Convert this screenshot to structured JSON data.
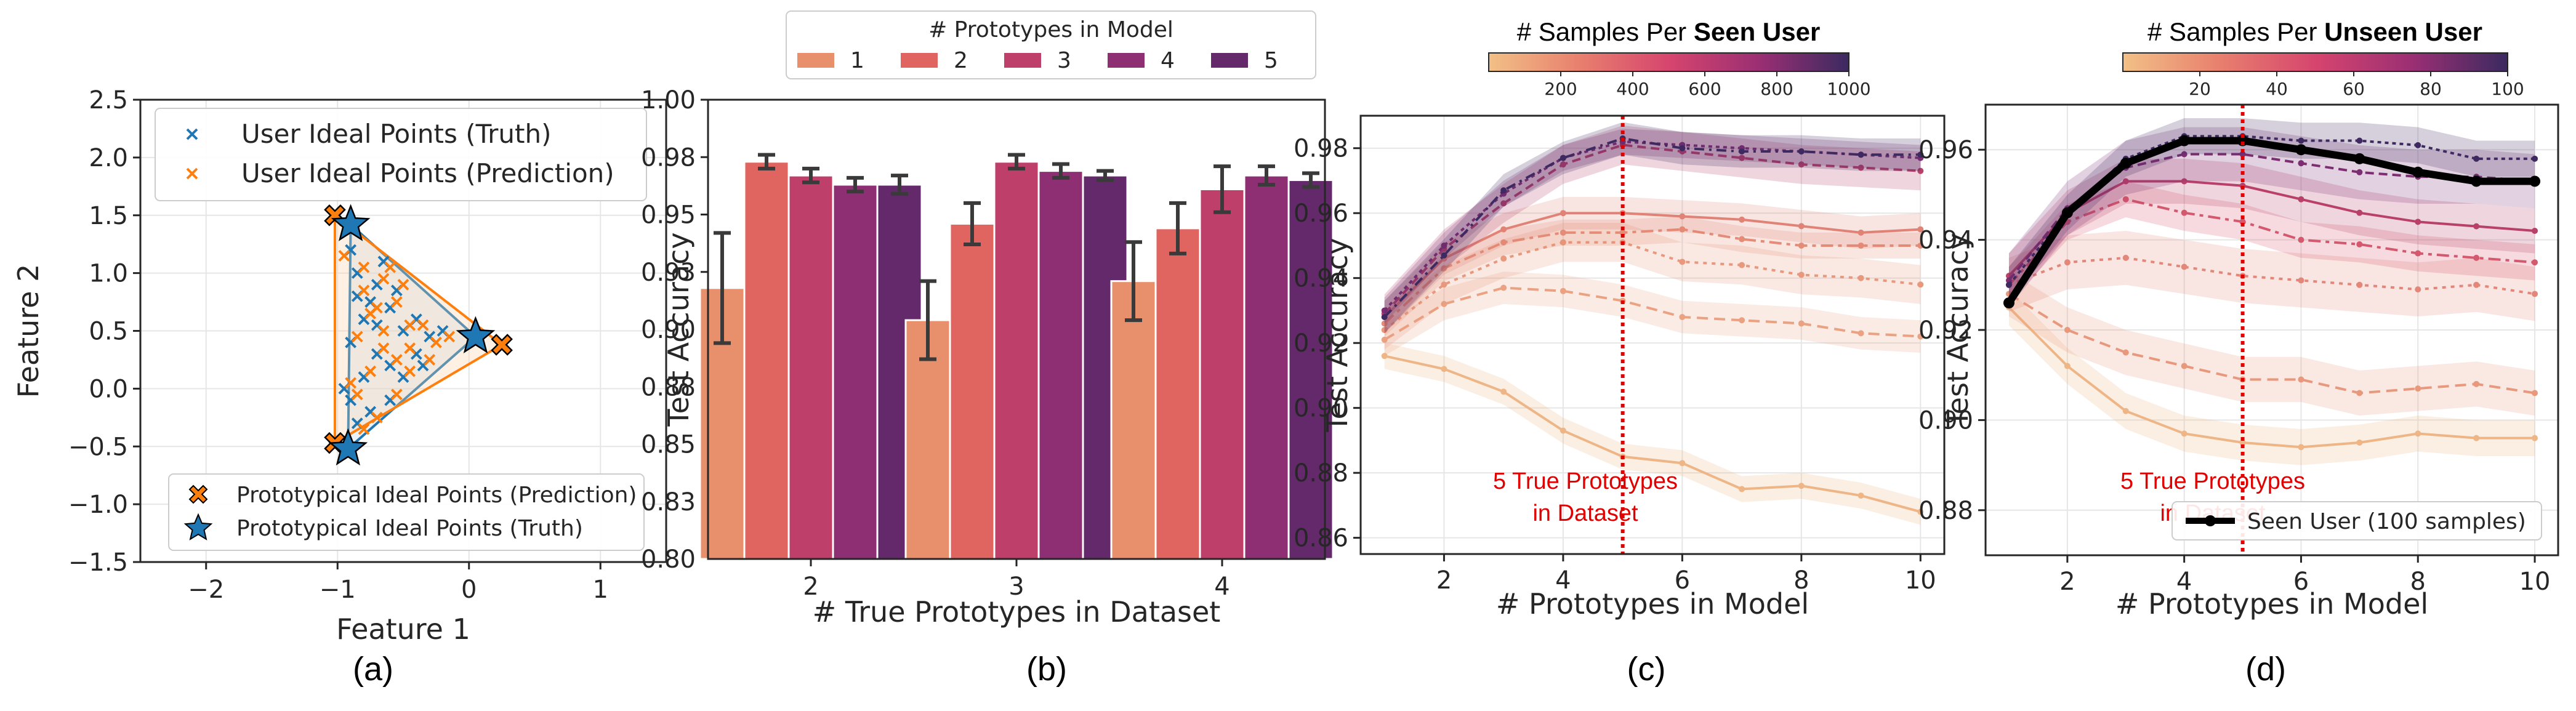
{
  "chart_data": [
    {
      "id": "a",
      "type": "scatter",
      "caption": "(a)",
      "xlabel": "Feature 1",
      "ylabel": "Feature 2",
      "xlim": [
        -2.5,
        1.5
      ],
      "ylim": [
        -1.5,
        2.5
      ],
      "xticks": [
        -2,
        -1,
        0,
        1
      ],
      "xtick_labels": [
        "−2",
        "−1",
        "0",
        "1"
      ],
      "yticks": [
        -1.5,
        -1.0,
        -0.5,
        0.0,
        0.5,
        1.0,
        1.5,
        2.0,
        2.5
      ],
      "ytick_labels": [
        "−1.5",
        "−1.0",
        "−0.5",
        "0.0",
        "0.5",
        "1.0",
        "1.5",
        "2.0",
        "2.5"
      ],
      "legend_top": [
        "User Ideal Points (Truth)",
        "User Ideal Points (Prediction)"
      ],
      "legend_bottom": [
        "Prototypical Ideal Points (Prediction)",
        "Prototypical Ideal Points (Truth)"
      ],
      "colors": {
        "truth": "#1f77b4",
        "prediction": "#ff7f0e"
      },
      "prototypes_truth": [
        [
          -0.9,
          1.42
        ],
        [
          0.05,
          0.45
        ],
        [
          -0.92,
          -0.52
        ]
      ],
      "prototypes_prediction": [
        [
          -1.02,
          1.5
        ],
        [
          0.25,
          0.38
        ],
        [
          -1.02,
          -0.47
        ]
      ],
      "user_points_truth": [
        [
          -0.9,
          1.2
        ],
        [
          -0.85,
          1.0
        ],
        [
          -0.7,
          0.9
        ],
        [
          -0.6,
          0.7
        ],
        [
          -0.8,
          0.6
        ],
        [
          -0.5,
          0.5
        ],
        [
          -0.4,
          0.6
        ],
        [
          -0.9,
          0.4
        ],
        [
          -0.7,
          0.3
        ],
        [
          -0.6,
          0.2
        ],
        [
          -0.8,
          0.1
        ],
        [
          -0.9,
          -0.1
        ],
        [
          -0.75,
          -0.2
        ],
        [
          -0.6,
          -0.1
        ],
        [
          -0.4,
          0.3
        ],
        [
          -0.3,
          0.45
        ],
        [
          -0.2,
          0.5
        ],
        [
          -0.85,
          0.8
        ],
        [
          -0.65,
          1.1
        ],
        [
          -0.55,
          0.85
        ],
        [
          -0.95,
          0.0
        ],
        [
          -0.85,
          -0.3
        ],
        [
          -0.7,
          0.55
        ],
        [
          -0.5,
          0.1
        ],
        [
          -0.35,
          0.2
        ],
        [
          -0.75,
          0.75
        ]
      ],
      "user_points_prediction": [
        [
          -0.95,
          1.15
        ],
        [
          -0.8,
          1.05
        ],
        [
          -0.65,
          0.95
        ],
        [
          -0.55,
          0.75
        ],
        [
          -0.75,
          0.65
        ],
        [
          -0.45,
          0.55
        ],
        [
          -0.35,
          0.55
        ],
        [
          -0.85,
          0.45
        ],
        [
          -0.65,
          0.35
        ],
        [
          -0.55,
          0.25
        ],
        [
          -0.75,
          0.15
        ],
        [
          -0.85,
          -0.05
        ],
        [
          -0.7,
          -0.25
        ],
        [
          -0.55,
          -0.05
        ],
        [
          -0.45,
          0.35
        ],
        [
          -0.25,
          0.4
        ],
        [
          -0.15,
          0.45
        ],
        [
          -0.8,
          0.85
        ],
        [
          -0.6,
          1.05
        ],
        [
          -0.5,
          0.9
        ],
        [
          -0.9,
          0.05
        ],
        [
          -0.8,
          -0.35
        ],
        [
          -0.65,
          0.5
        ],
        [
          -0.45,
          0.15
        ],
        [
          -0.3,
          0.25
        ],
        [
          -0.7,
          0.7
        ]
      ]
    },
    {
      "id": "b",
      "type": "bar",
      "caption": "(b)",
      "xlabel": "# True Prototypes in Dataset",
      "ylabel": "Test Accuracy",
      "ylim": [
        0.8,
        1.0
      ],
      "yticks": [
        0.8,
        0.825,
        0.85,
        0.875,
        0.9,
        0.925,
        0.95,
        0.975,
        1.0
      ],
      "ytick_labels": [
        "0.80",
        "0.83",
        "0.85",
        "0.88",
        "0.90",
        "0.93",
        "0.95",
        "0.98",
        "1.00"
      ],
      "categories": [
        "2",
        "3",
        "4"
      ],
      "legend_title": "# Prototypes in Model",
      "series": [
        {
          "name": "1",
          "color": "#e8906c",
          "values": [
            0.918,
            0.904,
            0.921
          ],
          "err": [
            0.024,
            0.017,
            0.017
          ]
        },
        {
          "name": "2",
          "color": "#e0645f",
          "values": [
            0.973,
            0.946,
            0.944
          ],
          "err": [
            0.003,
            0.009,
            0.011
          ]
        },
        {
          "name": "3",
          "color": "#bd3f6a",
          "values": [
            0.967,
            0.973,
            0.961
          ],
          "err": [
            0.003,
            0.003,
            0.01
          ]
        },
        {
          "name": "4",
          "color": "#8e2f73",
          "values": [
            0.963,
            0.969,
            0.967
          ],
          "err": [
            0.003,
            0.003,
            0.004
          ]
        },
        {
          "name": "5",
          "color": "#64296b",
          "values": [
            0.963,
            0.967,
            0.965
          ],
          "err": [
            0.004,
            0.002,
            0.003
          ]
        }
      ]
    },
    {
      "id": "c",
      "type": "line",
      "caption": "(c)",
      "xlabel": "# Prototypes in Model",
      "ylabel": "Test Accuracy",
      "xlim": [
        0.6,
        10.4
      ],
      "ylim": [
        0.855,
        0.99
      ],
      "xticks": [
        2,
        4,
        6,
        8,
        10
      ],
      "yticks": [
        0.86,
        0.88,
        0.9,
        0.92,
        0.94,
        0.96,
        0.98
      ],
      "ytick_labels": [
        "0.86",
        "0.88",
        "0.90",
        "0.92",
        "0.94",
        "0.96",
        "0.98"
      ],
      "x": [
        1,
        2,
        3,
        4,
        5,
        6,
        7,
        8,
        9,
        10
      ],
      "colorbar_title_prefix": "# Samples Per ",
      "colorbar_title_bold": "Seen User",
      "colorbar_range": [
        0,
        1000
      ],
      "colorbar_ticks": [
        "200",
        "400",
        "600",
        "800",
        "1000"
      ],
      "vline_x": 5,
      "annotation": [
        "5 True Prototypes",
        "in Dataset"
      ],
      "series": [
        {
          "name": "50",
          "color": "#eeb586",
          "values": [
            0.916,
            0.912,
            0.905,
            0.893,
            0.885,
            0.883,
            0.875,
            0.876,
            0.873,
            0.868
          ]
        },
        {
          "name": "150",
          "color": "#eaa282",
          "values": [
            0.921,
            0.932,
            0.937,
            0.936,
            0.933,
            0.928,
            0.927,
            0.926,
            0.923,
            0.922
          ]
        },
        {
          "name": "250",
          "color": "#e8987c",
          "values": [
            0.924,
            0.938,
            0.946,
            0.951,
            0.951,
            0.945,
            0.944,
            0.941,
            0.94,
            0.938
          ]
        },
        {
          "name": "350",
          "color": "#e48c78",
          "values": [
            0.926,
            0.943,
            0.951,
            0.954,
            0.954,
            0.955,
            0.952,
            0.95,
            0.95,
            0.95
          ]
        },
        {
          "name": "450",
          "color": "#e08376",
          "values": [
            0.928,
            0.946,
            0.955,
            0.96,
            0.96,
            0.959,
            0.958,
            0.956,
            0.954,
            0.955
          ]
        },
        {
          "name": "700",
          "color": "#b84069",
          "values": [
            0.929,
            0.949,
            0.963,
            0.975,
            0.981,
            0.979,
            0.977,
            0.975,
            0.974,
            0.973
          ]
        },
        {
          "name": "850",
          "color": "#7d2e72",
          "values": [
            0.93,
            0.95,
            0.966,
            0.977,
            0.982,
            0.981,
            0.98,
            0.979,
            0.978,
            0.977
          ]
        },
        {
          "name": "1000",
          "color": "#3e2a61",
          "values": [
            0.928,
            0.947,
            0.967,
            0.977,
            0.983,
            0.98,
            0.979,
            0.979,
            0.978,
            0.978
          ]
        }
      ]
    },
    {
      "id": "d",
      "type": "line",
      "caption": "(d)",
      "xlabel": "# Prototypes in Model",
      "ylabel": "Test Accuracy",
      "xlim": [
        0.6,
        10.4
      ],
      "ylim": [
        0.87,
        0.97
      ],
      "xticks": [
        2,
        4,
        6,
        8,
        10
      ],
      "yticks": [
        0.88,
        0.9,
        0.92,
        0.94,
        0.96
      ],
      "ytick_labels": [
        "0.88",
        "0.90",
        "0.92",
        "0.94",
        "0.96"
      ],
      "x": [
        1,
        2,
        3,
        4,
        5,
        6,
        7,
        8,
        9,
        10
      ],
      "colorbar_title_prefix": "# Samples Per ",
      "colorbar_title_bold": "Unseen User",
      "colorbar_range": [
        0,
        100
      ],
      "colorbar_ticks": [
        "20",
        "40",
        "60",
        "80",
        "100"
      ],
      "vline_x": 5,
      "annotation": [
        "5 True Prototypes",
        "in Dataset"
      ],
      "legend": "Seen User (100 samples)",
      "series": [
        {
          "name": "10",
          "color": "#eeb586",
          "values": [
            0.925,
            0.912,
            0.902,
            0.897,
            0.895,
            0.894,
            0.895,
            0.897,
            0.896,
            0.896
          ]
        },
        {
          "name": "25",
          "color": "#e8987c",
          "values": [
            0.928,
            0.92,
            0.915,
            0.912,
            0.909,
            0.909,
            0.906,
            0.907,
            0.908,
            0.906
          ]
        },
        {
          "name": "40",
          "color": "#e28779",
          "values": [
            0.93,
            0.935,
            0.936,
            0.934,
            0.932,
            0.931,
            0.93,
            0.929,
            0.93,
            0.928
          ]
        },
        {
          "name": "55",
          "color": "#d4586e",
          "values": [
            0.93,
            0.944,
            0.949,
            0.946,
            0.944,
            0.94,
            0.939,
            0.937,
            0.936,
            0.935
          ]
        },
        {
          "name": "70",
          "color": "#b84069",
          "values": [
            0.932,
            0.946,
            0.953,
            0.953,
            0.952,
            0.949,
            0.946,
            0.944,
            0.943,
            0.942
          ]
        },
        {
          "name": "85",
          "color": "#7d2e72",
          "values": [
            0.931,
            0.947,
            0.956,
            0.959,
            0.959,
            0.957,
            0.955,
            0.954,
            0.954,
            0.953
          ]
        },
        {
          "name": "100",
          "color": "#3e2a61",
          "values": [
            0.93,
            0.946,
            0.958,
            0.963,
            0.963,
            0.962,
            0.962,
            0.961,
            0.958,
            0.958
          ]
        },
        {
          "name": "Seen User (100 samples)",
          "color": "#000000",
          "bold": true,
          "values": [
            0.926,
            0.946,
            0.957,
            0.962,
            0.962,
            0.96,
            0.958,
            0.955,
            0.953,
            0.953
          ]
        }
      ]
    }
  ]
}
